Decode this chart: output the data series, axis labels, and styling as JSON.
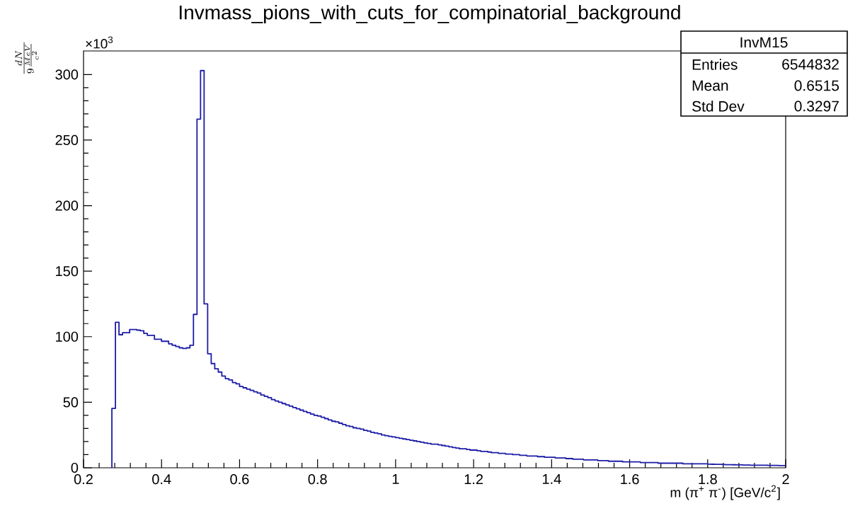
{
  "chart_data": {
    "type": "histogram",
    "title": "Invmass_pions_with_cuts_for_compinatorial_background",
    "xlabel": "m (π$^{+}$ π$^{-}$) [GeV/c$^{2}$]",
    "ylabel": "\\frac{dN}{9\\frac{MeV}{c^{2}}}",
    "annotations": [
      "×10$^{3}$",
      "InvM15",
      "Entries",
      "6544832",
      "Mean",
      "0.6515",
      "Std Dev",
      "0.3297"
    ],
    "color": "#1c1ca8",
    "xlim": [
      0.2,
      2
    ],
    "ylim": [
      0,
      318
    ],
    "xticks": [
      0.2,
      0.4,
      0.6,
      0.8,
      1,
      1.2,
      1.4,
      1.6,
      1.8,
      2
    ],
    "yticks": [
      0,
      50,
      100,
      150,
      200,
      250,
      300
    ],
    "bins": [
      0.2727,
      0.2818,
      0.2909,
      0.3,
      0.3091,
      0.3182,
      0.3273,
      0.3364,
      0.3455,
      0.3545,
      0.3636,
      0.3727,
      0.3818,
      0.3909,
      0.4,
      0.4091,
      0.4182,
      0.4273,
      0.4364,
      0.4455,
      0.4545,
      0.4636,
      0.4727,
      0.4818,
      0.4909,
      0.5,
      0.5091,
      0.5182,
      0.5273,
      0.5364,
      0.5455,
      0.5545,
      0.5636,
      0.5727,
      0.5818,
      0.5909,
      0.6,
      0.6091,
      0.6182,
      0.6273,
      0.6364,
      0.6455,
      0.6545,
      0.6636,
      0.6727,
      0.6818,
      0.6909,
      0.7,
      0.7091,
      0.7182,
      0.7273,
      0.7364,
      0.7455,
      0.7545,
      0.7636,
      0.7727,
      0.7818,
      0.7909,
      0.8,
      0.8091,
      0.8182,
      0.8273,
      0.8364,
      0.8455,
      0.8545,
      0.8636,
      0.8727,
      0.8818,
      0.8909,
      0.9,
      0.9091,
      0.9182,
      0.9273,
      0.9364,
      0.9455,
      0.9545,
      0.9636,
      0.9727,
      0.9818,
      0.9909,
      1.0,
      1.0091,
      1.0182,
      1.0273,
      1.0364,
      1.0455,
      1.0545,
      1.0636,
      1.0727,
      1.0818,
      1.0909,
      1.1,
      1.1091,
      1.1182,
      1.1273,
      1.1364,
      1.1455,
      1.1545,
      1.1636,
      1.1727,
      1.1818,
      1.1909,
      1.2,
      1.2091,
      1.2182,
      1.2273,
      1.2364,
      1.2455,
      1.2545,
      1.2636,
      1.2727,
      1.2818,
      1.2909,
      1.3,
      1.3091,
      1.3182,
      1.3273,
      1.3364,
      1.3455,
      1.3545,
      1.3636,
      1.3727,
      1.3818,
      1.3909,
      1.4,
      1.4091,
      1.4182,
      1.4273,
      1.4364,
      1.4455,
      1.4545,
      1.4636,
      1.4727,
      1.4818,
      1.4909,
      1.5,
      1.5091,
      1.5182,
      1.5273,
      1.5364,
      1.5455,
      1.5545,
      1.5636,
      1.5727,
      1.5818,
      1.5909,
      1.6,
      1.6091,
      1.6182,
      1.6273,
      1.6364,
      1.6455,
      1.6545,
      1.6636,
      1.6727,
      1.6818,
      1.6909,
      1.7,
      1.7091,
      1.7182,
      1.7273,
      1.7364,
      1.7455,
      1.7545,
      1.7636,
      1.7727,
      1.7818,
      1.7909,
      1.8,
      1.8091,
      1.8182,
      1.8273,
      1.8364,
      1.8455,
      1.8545,
      1.8636,
      1.8727,
      1.8818,
      1.8909,
      1.9,
      1.9091,
      1.9182,
      1.9273,
      1.9364,
      1.9455,
      1.9545,
      1.9636,
      1.9727,
      1.9818,
      1.9909,
      2.0
    ],
    "values": [
      45.3,
      111,
      101.5,
      103,
      103,
      105.5,
      105.5,
      105,
      104.5,
      102.5,
      101,
      101,
      98,
      98,
      96.5,
      96.5,
      94.5,
      93.5,
      92.5,
      91.5,
      91,
      91.5,
      93.5,
      117,
      266,
      303,
      125,
      87,
      79.5,
      75.5,
      73,
      70,
      68,
      67,
      65,
      64,
      62,
      61,
      60,
      59,
      58,
      57,
      55.5,
      54.5,
      53.5,
      52,
      51,
      50,
      49,
      48,
      47,
      46,
      45,
      44,
      43,
      42,
      41,
      40,
      39.5,
      38.5,
      37.5,
      36.5,
      35.5,
      35,
      34,
      33,
      32,
      31.5,
      30.5,
      30,
      29.5,
      28.5,
      28,
      27,
      26.5,
      26,
      25,
      24.5,
      24,
      23.5,
      23,
      22.5,
      22,
      21.5,
      21,
      20.5,
      20,
      19.5,
      19,
      18.5,
      18,
      18,
      17.5,
      17,
      16.5,
      16,
      15.5,
      15,
      14.5,
      14.5,
      14,
      13.5,
      13.5,
      13,
      12.5,
      12.5,
      12,
      11.5,
      11.5,
      11,
      11,
      10.5,
      10.5,
      10,
      10,
      9.5,
      9.5,
      9,
      9,
      9,
      8.5,
      8.5,
      8,
      8,
      8,
      7.5,
      7.5,
      7.5,
      7,
      7,
      6.5,
      6.5,
      6.5,
      6,
      6,
      6,
      6,
      5.5,
      5.5,
      5.5,
      5,
      5,
      5,
      5,
      4.5,
      4.5,
      4.5,
      4.5,
      4.5,
      4,
      4,
      4,
      4,
      4,
      3.5,
      3.5,
      3.5,
      3.5,
      3.5,
      3.5,
      3.5,
      3,
      3,
      3,
      3,
      3,
      3,
      3,
      2.8,
      2.7,
      2.6,
      2.6,
      2.5,
      2.4,
      2.4,
      2.3,
      2.2,
      2.2,
      2.1,
      2.1,
      2,
      2,
      2,
      1.9,
      1.9,
      1.8,
      1.8,
      1.8,
      1.7,
      1.7
    ]
  }
}
